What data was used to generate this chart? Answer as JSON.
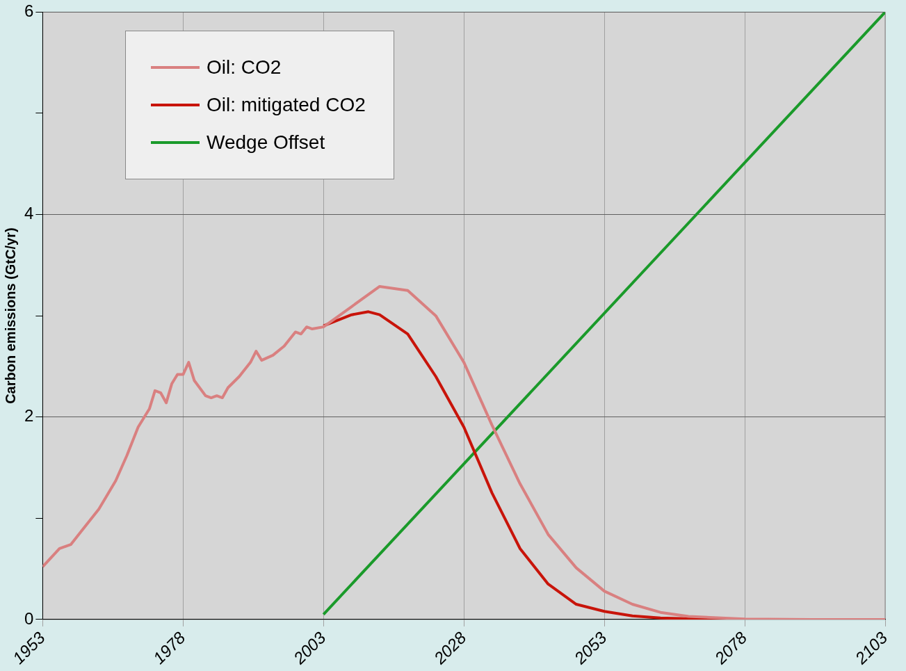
{
  "chart_data": {
    "type": "line",
    "ylabel": "Carbon emissions (GtC/yr)",
    "xlim": [
      1953,
      2103
    ],
    "xticks": [
      1953,
      1978,
      2003,
      2028,
      2053,
      2078,
      2103
    ],
    "ylim": [
      0,
      6
    ],
    "yticks": [
      0,
      {
        "value": 1,
        "label": null
      },
      2,
      {
        "value": 3,
        "label": null
      },
      4,
      {
        "value": 5,
        "label": null
      },
      6
    ],
    "grid": true,
    "legend": "top left",
    "marker": "none",
    "line_style": "solid",
    "series": [
      {
        "name": "Oil: CO2",
        "color": "#d98080",
        "x": [
          1953,
          1956,
          1958,
          1960,
          1963,
          1966,
          1968,
          1970,
          1972,
          1973,
          1974,
          1975,
          1976,
          1977,
          1978,
          1979,
          1980,
          1982,
          1983,
          1984,
          1985,
          1986,
          1988,
          1990,
          1991,
          1992,
          1994,
          1996,
          1998,
          1999,
          2000,
          2001,
          2003,
          2008,
          2013,
          2018,
          2023,
          2028,
          2033,
          2038,
          2043,
          2048,
          2053,
          2058,
          2063,
          2068,
          2078,
          2090,
          2103
        ],
        "values": [
          0.52,
          0.7,
          0.74,
          0.88,
          1.09,
          1.37,
          1.62,
          1.9,
          2.08,
          2.26,
          2.24,
          2.14,
          2.33,
          2.42,
          2.42,
          2.54,
          2.36,
          2.21,
          2.19,
          2.21,
          2.19,
          2.29,
          2.4,
          2.54,
          2.65,
          2.56,
          2.61,
          2.7,
          2.84,
          2.82,
          2.89,
          2.87,
          2.89,
          3.09,
          3.29,
          3.25,
          3.0,
          2.54,
          1.92,
          1.34,
          0.84,
          0.51,
          0.28,
          0.15,
          0.07,
          0.03,
          0.005,
          0,
          0
        ]
      },
      {
        "name": "Oil: mitigated CO2",
        "color": "#c8140a",
        "x": [
          2003,
          2008,
          2011,
          2013,
          2018,
          2023,
          2028,
          2033,
          2038,
          2043,
          2048,
          2053,
          2058,
          2063,
          2073,
          2103
        ],
        "values": [
          2.9,
          3.01,
          3.04,
          3.01,
          2.82,
          2.4,
          1.9,
          1.25,
          0.7,
          0.35,
          0.15,
          0.08,
          0.035,
          0.015,
          0,
          0
        ]
      },
      {
        "name": "Wedge Offset",
        "color": "#1a9a2a",
        "x": [
          2003,
          2103
        ],
        "values": [
          0.05,
          6
        ]
      }
    ]
  }
}
